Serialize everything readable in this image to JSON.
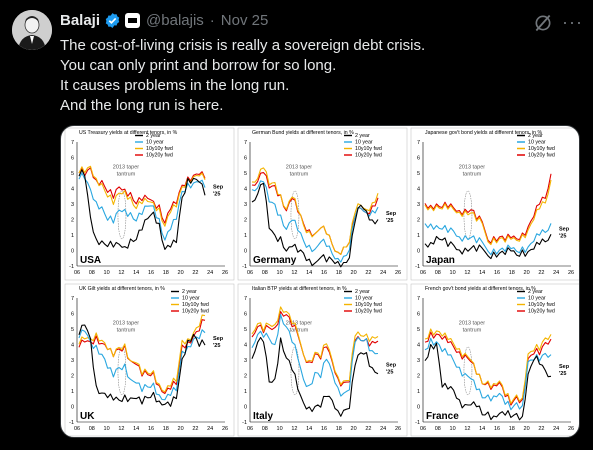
{
  "post": {
    "author_name": "Balaji",
    "handle": "@balajis",
    "separator": "·",
    "date": "Nov 25",
    "more_label": "···",
    "text_lines": [
      "The cost-of-living crisis is really a sovereign debt crisis.",
      "You can only print and borrow for so long.",
      "It causes problems in the long run.",
      "And the long run is here."
    ],
    "icons": {
      "verified": "verified-badge-icon",
      "affiliate": "affiliate-badge-icon",
      "grok": "grok-icon",
      "more": "more-icon"
    },
    "colors": {
      "verified": "#1d9bf0",
      "handle": "#71767b"
    }
  },
  "chart_data": [
    {
      "type": "line",
      "title": "US Treasury yields at different tenors, in %",
      "country": "USA",
      "annotation": "2013 taper tantrum",
      "end_label": "Sep '25",
      "x_ticks": [
        "06",
        "08",
        "10",
        "12",
        "14",
        "16",
        "18",
        "20",
        "22",
        "24",
        "26"
      ],
      "ylim": [
        -1,
        7
      ],
      "y_ticks": [
        "-1",
        "0",
        "1",
        "2",
        "3",
        "4",
        "5",
        "6",
        "7"
      ],
      "series": [
        {
          "name": "2 year",
          "color": "#000000",
          "values": [
            4.8,
            4.9,
            2.0,
            0.9,
            0.5,
            0.3,
            0.25,
            0.3,
            0.4,
            0.6,
            0.8,
            1.3,
            2.0,
            2.6,
            1.6,
            0.2,
            0.15,
            0.5,
            3.5,
            4.5,
            4.8,
            4.3,
            3.6
          ]
        },
        {
          "name": "10 year",
          "color": "#2aa7e0",
          "values": [
            4.6,
            4.7,
            3.8,
            3.3,
            2.7,
            2.0,
            1.8,
            2.5,
            2.8,
            2.3,
            2.0,
            2.3,
            2.8,
            3.0,
            1.9,
            0.8,
            1.3,
            2.0,
            3.9,
            4.2,
            4.5,
            4.3,
            4.1
          ]
        },
        {
          "name": "10y10y fwd",
          "color": "#f4b400",
          "values": [
            5.0,
            5.1,
            5.3,
            4.8,
            4.2,
            3.5,
            3.0,
            3.6,
            4.0,
            3.3,
            2.8,
            3.0,
            3.1,
            3.2,
            2.6,
            1.7,
            2.4,
            2.8,
            4.2,
            4.5,
            4.9,
            4.7,
            4.6
          ]
        },
        {
          "name": "10y20y fwd",
          "color": "#e00000",
          "values": [
            5.0,
            4.9,
            5.2,
            4.7,
            4.4,
            3.8,
            3.4,
            4.0,
            4.1,
            3.6,
            3.1,
            3.2,
            3.3,
            3.3,
            2.8,
            1.9,
            2.6,
            3.0,
            4.3,
            4.6,
            5.0,
            4.8,
            4.7
          ]
        }
      ]
    },
    {
      "type": "line",
      "title": "German Bund yields at different tenors, in %",
      "country": "Germany",
      "annotation": "2013 taper tantrum",
      "end_label": "Sep '25",
      "x_ticks": [
        "06",
        "08",
        "10",
        "12",
        "14",
        "16",
        "18",
        "20",
        "22",
        "24",
        "26"
      ],
      "ylim": [
        -1,
        7
      ],
      "y_ticks": [
        "-1",
        "0",
        "1",
        "2",
        "3",
        "4",
        "5",
        "6",
        "7"
      ],
      "series": [
        {
          "name": "2 year",
          "color": "#000000",
          "values": [
            3.0,
            3.8,
            4.2,
            1.5,
            1.0,
            0.8,
            0.1,
            0.1,
            0.0,
            -0.2,
            -0.6,
            -0.7,
            -0.6,
            -0.6,
            -0.7,
            -0.7,
            -0.7,
            -0.6,
            2.0,
            2.8,
            2.6,
            2.0,
            1.9
          ]
        },
        {
          "name": "10 year",
          "color": "#2aa7e0",
          "values": [
            3.8,
            4.2,
            4.3,
            3.2,
            3.0,
            2.2,
            1.5,
            1.8,
            1.4,
            0.6,
            0.3,
            0.2,
            0.4,
            0.4,
            -0.3,
            -0.5,
            -0.3,
            -0.1,
            2.3,
            2.6,
            2.5,
            2.6,
            2.7
          ]
        },
        {
          "name": "10y10y fwd",
          "color": "#f4b400",
          "values": [
            4.3,
            4.8,
            5.2,
            4.3,
            4.4,
            3.5,
            2.8,
            3.3,
            2.7,
            1.6,
            1.2,
            1.2,
            1.3,
            1.2,
            0.3,
            -0.1,
            0.3,
            0.4,
            2.6,
            2.8,
            2.7,
            3.1,
            3.6
          ]
        },
        {
          "name": "10y20y fwd",
          "color": "#e00000",
          "values": [
            4.1,
            4.6,
            4.9,
            4.1,
            4.2,
            3.5,
            2.7,
            3.2,
            2.6,
            1.7,
            1.3,
            1.2,
            1.3,
            1.2,
            0.3,
            -0.1,
            0.3,
            0.4,
            2.3,
            2.6,
            2.5,
            2.9,
            3.3
          ]
        }
      ]
    },
    {
      "type": "line",
      "title": "Japanese gov't bond yields at different tenors, in %",
      "country": "Japan",
      "annotation": "2013 taper tantrum",
      "end_label": "Sep '25",
      "x_ticks": [
        "06",
        "08",
        "10",
        "12",
        "14",
        "16",
        "18",
        "20",
        "22",
        "24",
        "26"
      ],
      "ylim": [
        -1,
        7
      ],
      "y_ticks": [
        "-1",
        "0",
        "1",
        "2",
        "3",
        "4",
        "5",
        "6",
        "7"
      ],
      "series": [
        {
          "name": "2 year",
          "color": "#000000",
          "values": [
            0.3,
            0.6,
            0.9,
            0.6,
            0.4,
            0.2,
            0.15,
            0.1,
            0.1,
            0.05,
            0.0,
            -0.2,
            -0.2,
            -0.15,
            -0.2,
            -0.15,
            -0.15,
            -0.1,
            0.0,
            0.1,
            0.3,
            0.7,
            0.9
          ]
        },
        {
          "name": "10 year",
          "color": "#2aa7e0",
          "values": [
            1.6,
            1.8,
            1.6,
            1.3,
            1.3,
            1.1,
            1.0,
            0.9,
            0.8,
            0.6,
            0.4,
            0.1,
            0.0,
            0.05,
            0.0,
            0.0,
            0.1,
            0.1,
            0.3,
            0.6,
            0.9,
            1.3,
            1.6
          ]
        },
        {
          "name": "10y10y fwd",
          "color": "#f4b400",
          "values": [
            2.8,
            2.9,
            2.9,
            2.6,
            2.8,
            2.5,
            2.6,
            2.5,
            2.4,
            2.0,
            1.6,
            0.7,
            0.7,
            0.8,
            0.6,
            0.6,
            0.8,
            0.9,
            1.4,
            2.0,
            2.6,
            3.2,
            4.4
          ]
        },
        {
          "name": "10y20y fwd",
          "color": "#e00000",
          "values": [
            2.9,
            3.0,
            3.0,
            2.7,
            2.9,
            2.6,
            2.7,
            2.6,
            2.6,
            2.1,
            1.7,
            0.8,
            0.8,
            0.9,
            0.7,
            0.7,
            0.9,
            1.0,
            1.6,
            2.2,
            2.9,
            3.5,
            4.8
          ]
        }
      ]
    },
    {
      "type": "line",
      "title": "UK Gilt yields at different tenors, in %",
      "country": "UK",
      "annotation": "2013 taper tantrum",
      "end_label": "Sep '25",
      "x_ticks": [
        "06",
        "08",
        "10",
        "12",
        "14",
        "16",
        "18",
        "20",
        "22",
        "24",
        "26"
      ],
      "ylim": [
        -1,
        7
      ],
      "y_ticks": [
        "-1",
        "0",
        "1",
        "2",
        "3",
        "4",
        "5",
        "6",
        "7"
      ],
      "series": [
        {
          "name": "2 year",
          "color": "#000000",
          "values": [
            4.6,
            5.2,
            4.5,
            1.2,
            1.0,
            0.5,
            0.4,
            0.5,
            0.6,
            0.7,
            0.4,
            0.2,
            0.6,
            0.8,
            0.5,
            0.0,
            0.1,
            0.5,
            3.0,
            4.4,
            4.5,
            4.0,
            3.9
          ]
        },
        {
          "name": "10 year",
          "color": "#2aa7e0",
          "values": [
            4.4,
            4.8,
            4.3,
            3.8,
            3.5,
            2.4,
            1.9,
            2.6,
            2.6,
            1.9,
            1.4,
            1.0,
            1.3,
            1.4,
            0.9,
            0.3,
            0.8,
            1.0,
            3.5,
            4.0,
            4.2,
            4.5,
            4.7
          ]
        },
        {
          "name": "10y10y fwd",
          "color": "#f4b400",
          "values": [
            4.0,
            4.3,
            4.5,
            4.6,
            4.4,
            3.6,
            3.2,
            3.9,
            3.9,
            3.1,
            2.7,
            2.1,
            2.2,
            2.2,
            1.6,
            0.8,
            1.4,
            1.6,
            4.2,
            4.5,
            4.6,
            5.3,
            5.8
          ]
        },
        {
          "name": "10y20y fwd",
          "color": "#e00000",
          "values": [
            3.8,
            4.1,
            4.3,
            4.4,
            4.2,
            3.6,
            3.2,
            3.8,
            3.8,
            3.1,
            2.6,
            2.0,
            2.1,
            2.1,
            1.5,
            0.7,
            1.2,
            1.4,
            3.9,
            4.3,
            4.4,
            5.0,
            5.5
          ]
        }
      ]
    },
    {
      "type": "line",
      "title": "Italian BTP yields at different tenors, in %",
      "country": "Italy",
      "annotation": "2013 taper tantrum",
      "end_label": "Sep '25",
      "x_ticks": [
        "06",
        "08",
        "10",
        "12",
        "14",
        "16",
        "18",
        "20",
        "22",
        "24",
        "26"
      ],
      "ylim": [
        -1,
        7
      ],
      "y_ticks": [
        "-1",
        "0",
        "1",
        "2",
        "3",
        "4",
        "5",
        "6",
        "7"
      ],
      "series": [
        {
          "name": "2 year",
          "color": "#000000",
          "values": [
            3.2,
            4.0,
            4.3,
            1.5,
            1.8,
            4.5,
            3.0,
            2.5,
            1.0,
            0.3,
            0.0,
            -0.1,
            0.1,
            0.5,
            0.5,
            -0.3,
            -0.3,
            0.0,
            2.5,
            3.6,
            3.4,
            2.5,
            2.2
          ]
        },
        {
          "name": "10 year",
          "color": "#2aa7e0",
          "values": [
            3.9,
            4.5,
            4.6,
            4.3,
            4.0,
            6.0,
            5.0,
            4.3,
            3.0,
            1.8,
            1.4,
            2.1,
            2.0,
            2.9,
            2.3,
            1.2,
            0.8,
            1.2,
            4.0,
            4.4,
            4.3,
            3.6,
            3.5
          ]
        },
        {
          "name": "10y10y fwd",
          "color": "#f4b400",
          "values": [
            4.8,
            5.2,
            5.0,
            5.2,
            5.3,
            6.5,
            6.0,
            5.5,
            4.6,
            3.4,
            3.0,
            3.4,
            3.3,
            3.9,
            3.1,
            1.9,
            1.6,
            1.8,
            4.4,
            4.7,
            4.6,
            4.5,
            4.6
          ]
        },
        {
          "name": "10y20y fwd",
          "color": "#e00000",
          "values": [
            4.6,
            5.0,
            4.9,
            5.0,
            5.1,
            6.2,
            5.8,
            5.3,
            4.5,
            3.4,
            2.9,
            3.3,
            3.2,
            3.7,
            3.0,
            1.8,
            1.5,
            1.7,
            4.1,
            4.4,
            4.3,
            4.2,
            4.3
          ]
        }
      ]
    },
    {
      "type": "line",
      "title": "French gov't bond yields at different tenors, in %",
      "country": "France",
      "annotation": "2013 taper tantrum",
      "end_label": "Sep '25",
      "x_ticks": [
        "06",
        "08",
        "10",
        "12",
        "14",
        "16",
        "18",
        "20",
        "22",
        "24",
        "26"
      ],
      "ylim": [
        -1,
        7
      ],
      "y_ticks": [
        "-1",
        "0",
        "1",
        "2",
        "3",
        "4",
        "5",
        "6",
        "7"
      ],
      "series": [
        {
          "name": "2 year",
          "color": "#000000",
          "values": [
            3.1,
            3.9,
            4.1,
            1.3,
            1.0,
            1.2,
            0.3,
            0.2,
            0.1,
            -0.1,
            -0.4,
            -0.5,
            -0.5,
            -0.5,
            -0.6,
            -0.6,
            -0.6,
            -0.5,
            2.0,
            3.0,
            2.8,
            2.2,
            2.1
          ]
        },
        {
          "name": "10 year",
          "color": "#2aa7e0",
          "values": [
            3.8,
            4.3,
            4.2,
            3.6,
            3.2,
            3.1,
            2.4,
            2.2,
            1.8,
            1.0,
            0.7,
            0.6,
            0.8,
            0.8,
            0.1,
            -0.1,
            0.1,
            0.2,
            2.8,
            3.0,
            3.0,
            3.3,
            3.5
          ]
        },
        {
          "name": "10y10y fwd",
          "color": "#f4b400",
          "values": [
            4.5,
            4.9,
            4.9,
            4.6,
            4.2,
            4.2,
            3.6,
            3.5,
            3.0,
            2.0,
            1.6,
            1.5,
            1.6,
            1.6,
            0.7,
            0.3,
            0.6,
            0.7,
            3.3,
            3.6,
            3.7,
            4.3,
            4.8
          ]
        },
        {
          "name": "10y20y fwd",
          "color": "#e00000",
          "values": [
            4.3,
            4.7,
            4.7,
            4.4,
            4.0,
            4.0,
            3.4,
            3.4,
            2.9,
            2.0,
            1.6,
            1.4,
            1.5,
            1.5,
            0.6,
            0.2,
            0.5,
            0.6,
            3.0,
            3.4,
            3.4,
            4.0,
            4.5
          ]
        }
      ]
    }
  ]
}
